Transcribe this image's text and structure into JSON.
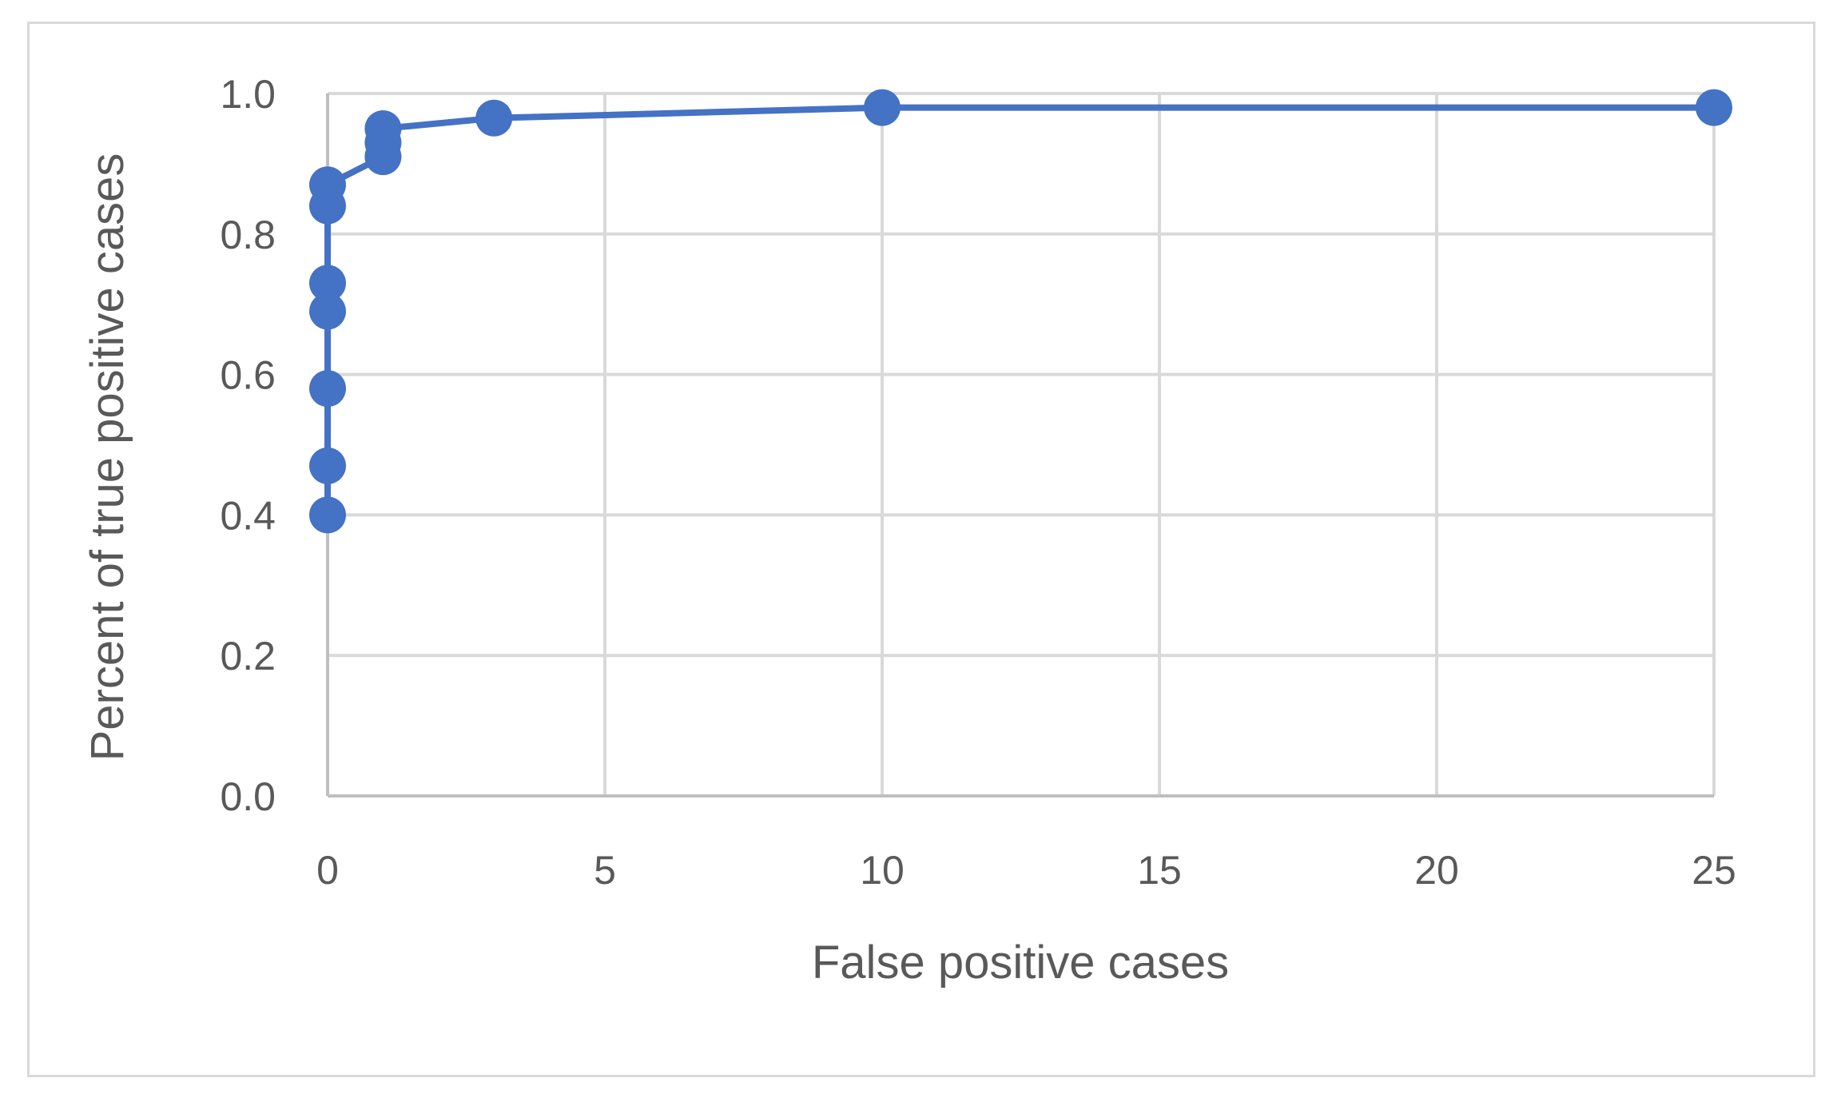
{
  "chart_data": {
    "type": "line",
    "title": "",
    "xlabel": "False positive cases",
    "ylabel": "Percent of true positive cases",
    "xlim": [
      0,
      25
    ],
    "ylim": [
      0,
      1.0
    ],
    "xticks": [
      "0",
      "5",
      "10",
      "15",
      "20",
      "25"
    ],
    "yticks": [
      "0.0",
      "0.2",
      "0.4",
      "0.6",
      "0.8",
      "1.0"
    ],
    "grid": true,
    "legend": "none",
    "series": [
      {
        "color": "#4472C4",
        "points": [
          {
            "x": 0,
            "y": 0.4
          },
          {
            "x": 0,
            "y": 0.47
          },
          {
            "x": 0,
            "y": 0.58
          },
          {
            "x": 0,
            "y": 0.69
          },
          {
            "x": 0,
            "y": 0.73
          },
          {
            "x": 0,
            "y": 0.84
          },
          {
            "x": 0,
            "y": 0.87
          },
          {
            "x": 1,
            "y": 0.91
          },
          {
            "x": 1,
            "y": 0.93
          },
          {
            "x": 1,
            "y": 0.95
          },
          {
            "x": 3,
            "y": 0.965
          },
          {
            "x": 10,
            "y": 0.98
          },
          {
            "x": 25,
            "y": 0.98
          }
        ]
      }
    ]
  }
}
